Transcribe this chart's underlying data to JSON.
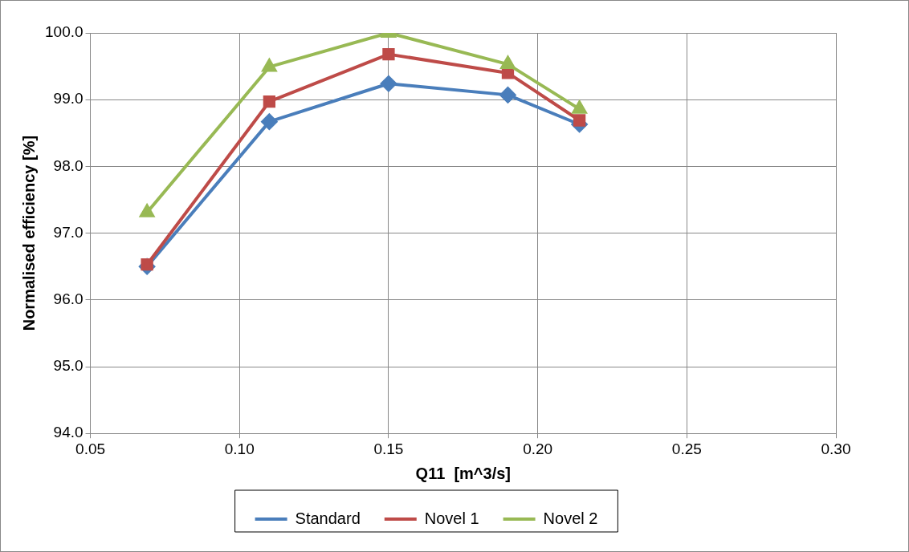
{
  "chart_data": {
    "type": "line",
    "xlabel": "Q11  [m^3/s]",
    "ylabel": "Normalised efficiency [%]",
    "x": [
      0.069,
      0.11,
      0.15,
      0.19,
      0.214
    ],
    "series": [
      {
        "name": "Standard",
        "color": "#4a7ebb",
        "marker": "diamond",
        "values": [
          96.5,
          98.67,
          99.24,
          99.07,
          98.63
        ]
      },
      {
        "name": "Novel 1",
        "color": "#be4b48",
        "marker": "square",
        "values": [
          96.53,
          98.97,
          99.68,
          99.4,
          98.69
        ]
      },
      {
        "name": "Novel 2",
        "color": "#98b954",
        "marker": "triangle",
        "values": [
          97.31,
          99.49,
          100.0,
          99.53,
          98.86
        ]
      }
    ],
    "xlim": [
      0.05,
      0.3
    ],
    "xticks": [
      {
        "value": 0.05,
        "label": "0.05"
      },
      {
        "value": 0.1,
        "label": "0.10"
      },
      {
        "value": 0.15,
        "label": "0.15"
      },
      {
        "value": 0.2,
        "label": "0.20"
      },
      {
        "value": 0.25,
        "label": "0.25"
      },
      {
        "value": 0.3,
        "label": "0.30"
      }
    ],
    "ylim": [
      94,
      100
    ],
    "yticks": [
      {
        "value": 94,
        "label": "94.0"
      },
      {
        "value": 95,
        "label": "95.0"
      },
      {
        "value": 96,
        "label": "96.0"
      },
      {
        "value": 97,
        "label": "97.0"
      },
      {
        "value": 98,
        "label": "98.0"
      },
      {
        "value": 99,
        "label": "99.0"
      },
      {
        "value": 100,
        "label": "100.0"
      }
    ],
    "grid": true,
    "legend": "bottom",
    "line_style": "solid"
  }
}
